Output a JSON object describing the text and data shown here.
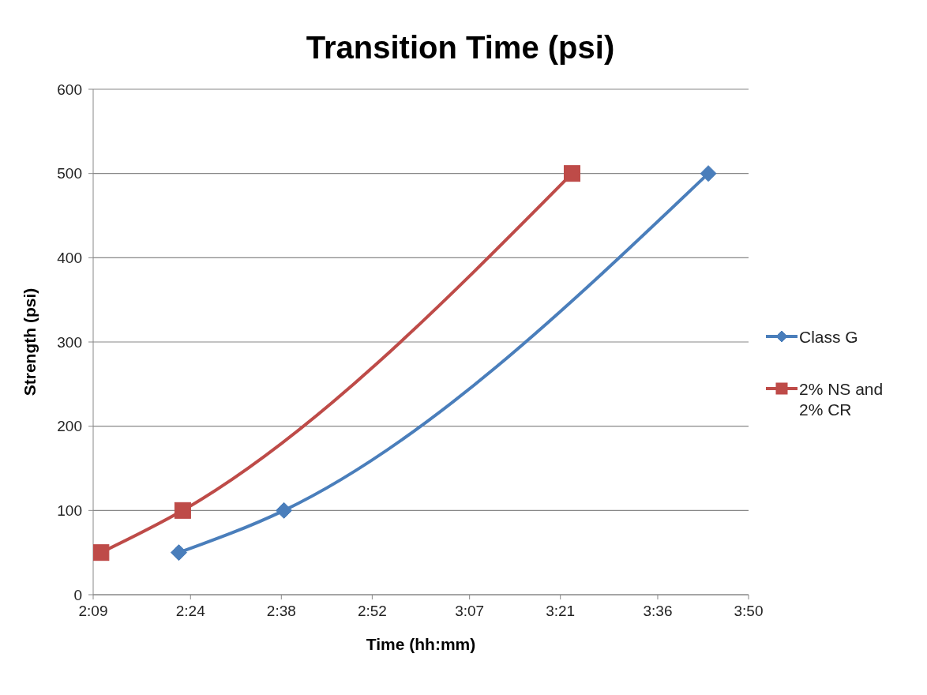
{
  "chart_data": {
    "type": "line",
    "title": "Transition Time (psi)",
    "xlabel": "Time (hh:mm)",
    "ylabel": "Strength (psi)",
    "xlim": [
      2.15,
      3.8333
    ],
    "xticks": [
      {
        "value": 2.15,
        "label": "2:09"
      },
      {
        "value": 2.4,
        "label": "2:24"
      },
      {
        "value": 2.6333,
        "label": "2:38"
      },
      {
        "value": 2.8667,
        "label": "2:52"
      },
      {
        "value": 3.1167,
        "label": "3:07"
      },
      {
        "value": 3.35,
        "label": "3:21"
      },
      {
        "value": 3.6,
        "label": "3:36"
      },
      {
        "value": 3.8333,
        "label": "3:50"
      }
    ],
    "ylim": [
      0,
      600
    ],
    "yticks": [
      0,
      100,
      200,
      300,
      400,
      500,
      600
    ],
    "grid": "y",
    "legend": "right",
    "series": [
      {
        "name": "Class G",
        "color": "#4a7ebb",
        "marker": "diamond",
        "x": [
          2.37,
          2.64,
          3.73
        ],
        "values": [
          50,
          100,
          500
        ]
      },
      {
        "name": "2% NS and 2% CR",
        "color": "#be4b48",
        "marker": "square",
        "x": [
          2.17,
          2.38,
          3.38
        ],
        "values": [
          50,
          100,
          500
        ]
      }
    ]
  }
}
